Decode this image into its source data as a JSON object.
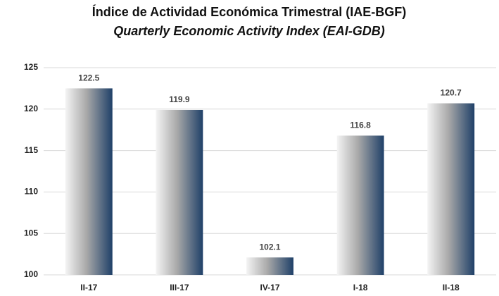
{
  "chart_data": {
    "type": "bar",
    "title": "Índice de Actividad Económica Trimestral (IAE-BGF)",
    "subtitle": "Quarterly Economic Activity Index (EAI-GDB)",
    "categories": [
      "II-17",
      "III-17",
      "IV-17",
      "I-18",
      "II-18"
    ],
    "values": [
      122.5,
      119.9,
      102.1,
      116.8,
      120.7
    ],
    "color": "#1f4068",
    "ylim": [
      100,
      125
    ],
    "yticks": [
      100,
      105,
      110,
      115,
      120,
      125
    ],
    "grid": true
  }
}
